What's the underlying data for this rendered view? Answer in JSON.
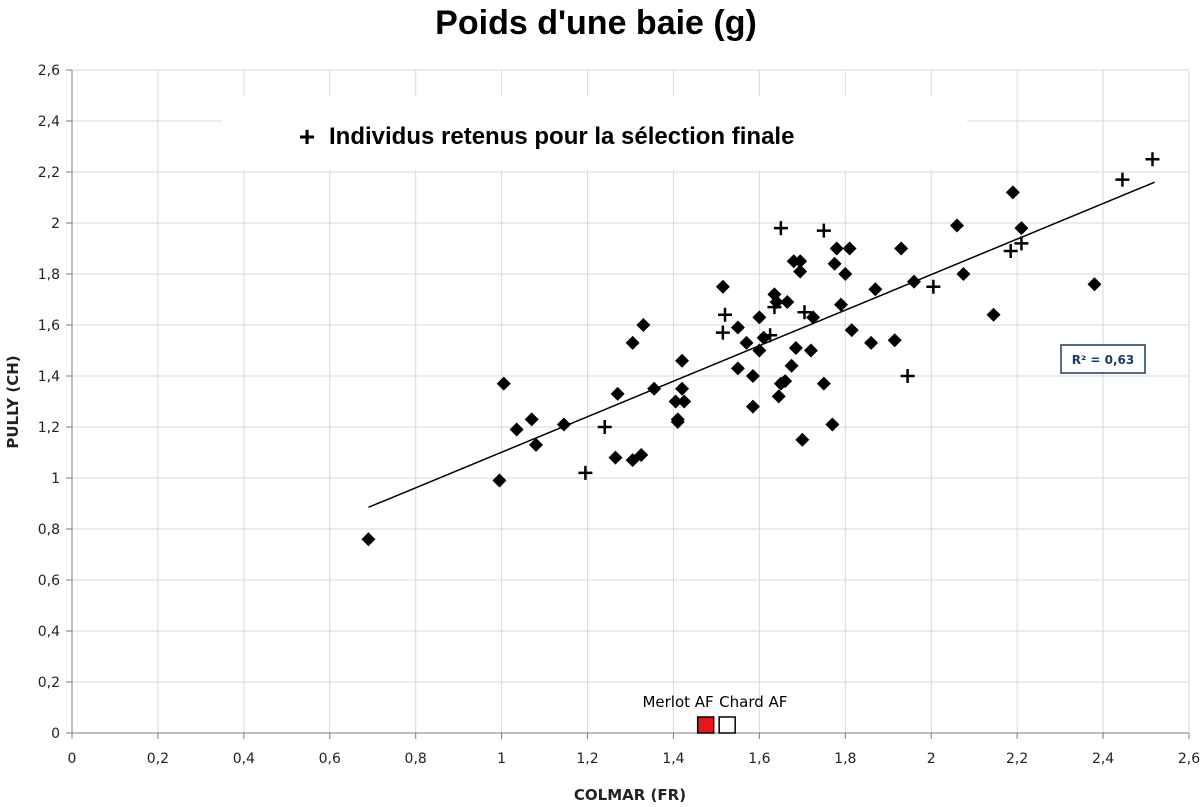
{
  "chart_data": {
    "type": "scatter",
    "title": "Poids d'une baie (g)",
    "xlabel": "COLMAR (FR)",
    "ylabel": "PULLY (CH)",
    "xlim": [
      0,
      2.6
    ],
    "ylim": [
      0,
      2.6
    ],
    "grid": true,
    "x_ticks": [
      "0",
      "0,2",
      "0,4",
      "0,6",
      "0,8",
      "1",
      "1,2",
      "1,4",
      "1,6",
      "1,8",
      "2",
      "2,2",
      "2,4",
      "2,6"
    ],
    "y_ticks": [
      "0",
      "0,2",
      "0,4",
      "0,6",
      "0,8",
      "1",
      "1,2",
      "1,4",
      "1,6",
      "1,8",
      "2",
      "2,2",
      "2,4",
      "2,6"
    ],
    "legend_label": "Individus retenus pour la sélection finale",
    "legend_symbol": "+",
    "r2_label": "R² = 0,63",
    "trendline": {
      "x_start": 0.69,
      "y_start": 0.885,
      "x_end": 2.52,
      "y_end": 2.16
    },
    "series": [
      {
        "marker": "diamond",
        "color": "#000000",
        "points": [
          [
            0.69,
            0.76
          ],
          [
            0.995,
            0.99
          ],
          [
            1.005,
            1.37
          ],
          [
            1.035,
            1.19
          ],
          [
            1.07,
            1.23
          ],
          [
            1.08,
            1.13
          ],
          [
            1.145,
            1.21
          ],
          [
            1.265,
            1.08
          ],
          [
            1.27,
            1.33
          ],
          [
            1.305,
            1.53
          ],
          [
            1.305,
            1.07
          ],
          [
            1.325,
            1.09
          ],
          [
            1.33,
            1.6
          ],
          [
            1.355,
            1.35
          ],
          [
            1.405,
            1.3
          ],
          [
            1.41,
            1.23
          ],
          [
            1.41,
            1.22
          ],
          [
            1.42,
            1.46
          ],
          [
            1.42,
            1.35
          ],
          [
            1.425,
            1.3
          ],
          [
            1.515,
            1.75
          ],
          [
            1.55,
            1.59
          ],
          [
            1.55,
            1.43
          ],
          [
            1.57,
            1.53
          ],
          [
            1.585,
            1.4
          ],
          [
            1.585,
            1.28
          ],
          [
            1.6,
            1.5
          ],
          [
            1.6,
            1.63
          ],
          [
            1.61,
            1.55
          ],
          [
            1.635,
            1.72
          ],
          [
            1.64,
            1.69
          ],
          [
            1.645,
            1.32
          ],
          [
            1.65,
            1.37
          ],
          [
            1.66,
            1.38
          ],
          [
            1.665,
            1.69
          ],
          [
            1.675,
            1.44
          ],
          [
            1.68,
            1.85
          ],
          [
            1.685,
            1.51
          ],
          [
            1.695,
            1.85
          ],
          [
            1.695,
            1.81
          ],
          [
            1.7,
            1.15
          ],
          [
            1.72,
            1.5
          ],
          [
            1.725,
            1.63
          ],
          [
            1.75,
            1.37
          ],
          [
            1.77,
            1.21
          ],
          [
            1.775,
            1.84
          ],
          [
            1.78,
            1.9
          ],
          [
            1.79,
            1.68
          ],
          [
            1.8,
            1.8
          ],
          [
            1.81,
            1.9
          ],
          [
            1.815,
            1.58
          ],
          [
            1.86,
            1.53
          ],
          [
            1.87,
            1.74
          ],
          [
            1.915,
            1.54
          ],
          [
            1.93,
            1.9
          ],
          [
            1.96,
            1.77
          ],
          [
            2.06,
            1.99
          ],
          [
            2.075,
            1.8
          ],
          [
            2.145,
            1.64
          ],
          [
            2.19,
            2.12
          ],
          [
            2.21,
            1.98
          ],
          [
            2.38,
            1.76
          ]
        ]
      },
      {
        "name": "Individus retenus pour la sélection finale",
        "marker": "plus",
        "color": "#000000",
        "points": [
          [
            1.195,
            1.02
          ],
          [
            1.24,
            1.2
          ],
          [
            1.515,
            1.57
          ],
          [
            1.52,
            1.64
          ],
          [
            1.625,
            1.56
          ],
          [
            1.635,
            1.67
          ],
          [
            1.65,
            1.98
          ],
          [
            1.705,
            1.65
          ],
          [
            1.75,
            1.97
          ],
          [
            1.945,
            1.4
          ],
          [
            2.005,
            1.75
          ],
          [
            2.185,
            1.89
          ],
          [
            2.21,
            1.92
          ],
          [
            2.445,
            2.17
          ],
          [
            2.515,
            2.25
          ]
        ]
      }
    ],
    "annotations": [
      {
        "label": "Merlot AF",
        "x": 1.475,
        "y": 0,
        "fill": "#e31818"
      },
      {
        "label": "Chard AF",
        "x": 1.525,
        "y": 0,
        "fill": "#ffffff"
      }
    ]
  }
}
